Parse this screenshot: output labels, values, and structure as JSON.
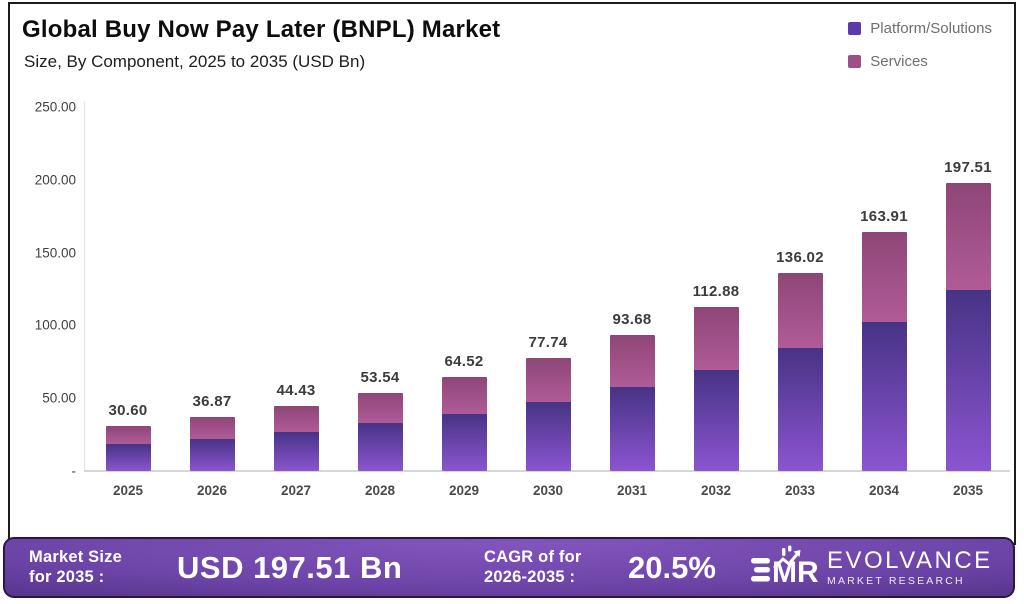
{
  "header": {
    "title": "Global Buy Now Pay Later (BNPL) Market",
    "subtitle": "Size, By Component, 2025 to 2035 (USD Bn)"
  },
  "legend": [
    {
      "label": "Platform/Solutions",
      "color": "#5b3aad"
    },
    {
      "label": "Services",
      "color": "#a04e88"
    }
  ],
  "chart_data": {
    "type": "bar",
    "stacked": true,
    "title": "Global Buy Now Pay Later (BNPL) Market",
    "subtitle": "Size, By Component, 2025 to 2035 (USD Bn)",
    "xlabel": "",
    "ylabel": "USD Bn",
    "ylim": [
      0,
      250
    ],
    "grid": false,
    "legend_position": "top-right",
    "categories": [
      "2025",
      "2026",
      "2027",
      "2028",
      "2029",
      "2030",
      "2031",
      "2032",
      "2033",
      "2034",
      "2035"
    ],
    "totals": [
      30.6,
      36.87,
      44.43,
      53.54,
      64.52,
      77.74,
      93.68,
      112.88,
      136.02,
      163.91,
      197.51
    ],
    "value_labels": [
      "30.60",
      "36.87",
      "44.43",
      "53.54",
      "64.52",
      "77.74",
      "93.68",
      "112.88",
      "136.02",
      "163.91",
      "197.51"
    ],
    "series": [
      {
        "name": "Platform/Solutions",
        "values": [
          18.4,
          22.3,
          27.0,
          32.7,
          39.0,
          47.5,
          57.4,
          69.1,
          84.5,
          102.6,
          124.0
        ],
        "gradient": [
          "#473385",
          "#8b55d0"
        ]
      },
      {
        "name": "Services",
        "values": [
          12.2,
          14.6,
          17.4,
          20.8,
          25.5,
          30.2,
          36.3,
          43.8,
          51.5,
          61.3,
          73.5
        ],
        "gradient": [
          "#8e4677",
          "#b05b97"
        ]
      }
    ],
    "y_ticks": [
      {
        "value": 250,
        "label": "250.00"
      },
      {
        "value": 200,
        "label": "200.00"
      },
      {
        "value": 150,
        "label": "150.00"
      },
      {
        "value": 100,
        "label": "100.00"
      },
      {
        "value": 50,
        "label": "50.00"
      },
      {
        "value": 0,
        "label": "-"
      }
    ]
  },
  "banner": {
    "label1_line1": "Market Size",
    "label1_line2": "for 2035 :",
    "value1": "USD 197.51 Bn",
    "label2_line1": "CAGR of for",
    "label2_line2": "2026-2035 :",
    "value2": "20.5%",
    "brand_name": "EVOLVANCE",
    "brand_sub": "MARKET RESEARCH"
  }
}
